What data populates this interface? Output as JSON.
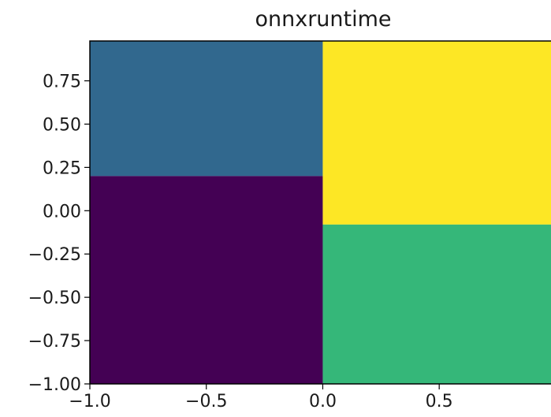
{
  "chart_data": {
    "type": "heatmap",
    "title": "onnxruntime",
    "xlabel": "",
    "ylabel": "",
    "xlim": [
      -1.0,
      0.98
    ],
    "ylim": [
      -1.0,
      0.98
    ],
    "grid": false,
    "x_ticks": [
      {
        "value": -1.0,
        "label": "−1.0"
      },
      {
        "value": -0.5,
        "label": "−0.5"
      },
      {
        "value": 0.0,
        "label": "0.0"
      },
      {
        "value": 0.5,
        "label": "0.5"
      }
    ],
    "y_ticks": [
      {
        "value": 0.75,
        "label": "0.75"
      },
      {
        "value": 0.5,
        "label": "0.50"
      },
      {
        "value": 0.25,
        "label": "0.25"
      },
      {
        "value": 0.0,
        "label": "0.00"
      },
      {
        "value": -0.25,
        "label": "−0.25"
      },
      {
        "value": -0.5,
        "label": "−0.50"
      },
      {
        "value": -0.75,
        "label": "−0.75"
      },
      {
        "value": -1.0,
        "label": "−1.00"
      }
    ],
    "regions": [
      {
        "x": [
          -1.0,
          0.0
        ],
        "y": [
          0.2,
          0.98
        ],
        "color": "#31688e"
      },
      {
        "x": [
          -1.0,
          0.0
        ],
        "y": [
          -1.0,
          0.2
        ],
        "color": "#440154"
      },
      {
        "x": [
          0.0,
          0.98
        ],
        "y": [
          -0.08,
          0.98
        ],
        "color": "#fde725"
      },
      {
        "x": [
          0.0,
          0.98
        ],
        "y": [
          -1.0,
          -0.08
        ],
        "color": "#35b779"
      }
    ]
  }
}
